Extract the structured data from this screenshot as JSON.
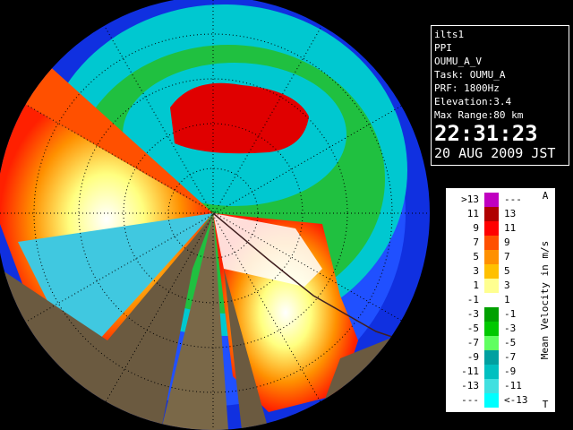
{
  "info": {
    "lines": [
      "ilts1",
      "PPI",
      "OUMU_A_V",
      "Task: OUMU_A",
      "PRF: 1800Hz",
      "Elevation:3.4",
      "Max Range:80 km"
    ],
    "time": "22:31:23",
    "date": "20 AUG 2009 JST"
  },
  "legend": {
    "title": "Mean Velocity in m/s",
    "top": "A",
    "bottom": "T",
    "rows": [
      {
        "left": ">13",
        "right": "---",
        "color": "#c000c0"
      },
      {
        "left": "11",
        "right": "13",
        "color": "#b00000"
      },
      {
        "left": "9",
        "right": "11",
        "color": "#ff0000"
      },
      {
        "left": "7",
        "right": "9",
        "color": "#ff5000"
      },
      {
        "left": "5",
        "right": "7",
        "color": "#ff9000"
      },
      {
        "left": "3",
        "right": "5",
        "color": "#ffc000"
      },
      {
        "left": "1",
        "right": "3",
        "color": "#ffff90"
      },
      {
        "left": "-1",
        "right": "1",
        "color": "#ffffff"
      },
      {
        "left": "-3",
        "right": "-1",
        "color": "#00a000"
      },
      {
        "left": "-5",
        "right": "-3",
        "color": "#00c800"
      },
      {
        "left": "-7",
        "right": "-5",
        "color": "#60ff60"
      },
      {
        "left": "-9",
        "right": "-7",
        "color": "#00a0a0"
      },
      {
        "left": "-11",
        "right": "-9",
        "color": "#00c0c0"
      },
      {
        "left": "-13",
        "right": "-11",
        "color": "#40e0e0"
      },
      {
        "left": "---",
        "right": "<-13",
        "color": "#00ffff"
      }
    ]
  }
}
